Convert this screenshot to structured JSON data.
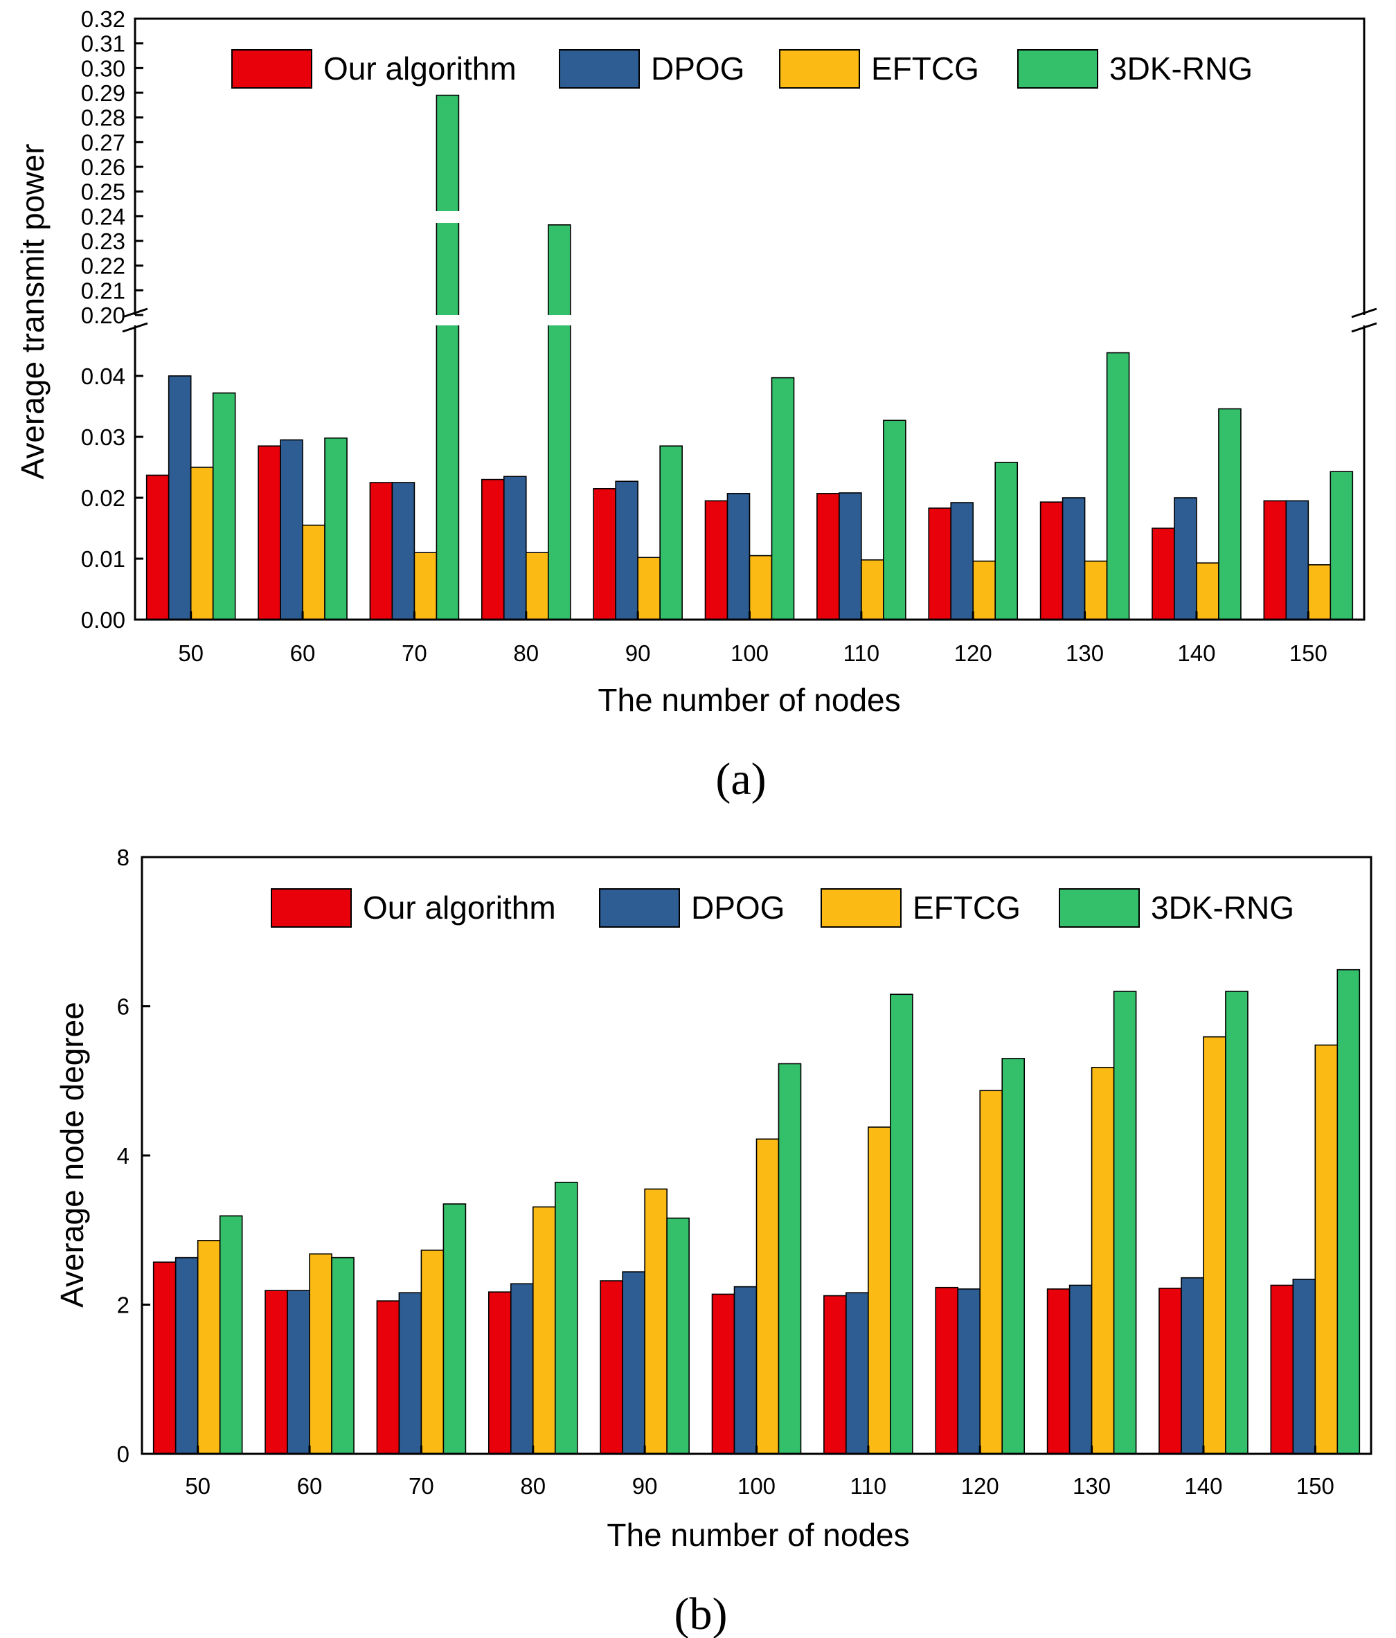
{
  "chart_data": [
    {
      "type": "bar",
      "panel_label": "(a)",
      "xlabel": "The number of nodes",
      "ylabel": "Average transmit power",
      "categories": [
        "50",
        "60",
        "70",
        "80",
        "90",
        "100",
        "110",
        "120",
        "130",
        "140",
        "150"
      ],
      "series": [
        {
          "name": "Our algorithm",
          "color": "#e8000b",
          "values": [
            0.0237,
            0.0285,
            0.0225,
            0.023,
            0.0215,
            0.0195,
            0.0207,
            0.0183,
            0.0193,
            0.015,
            0.0195
          ]
        },
        {
          "name": "DPOG",
          "color": "#2e5d93",
          "values": [
            0.04,
            0.0295,
            0.0225,
            0.0235,
            0.0227,
            0.0207,
            0.0208,
            0.0192,
            0.02,
            0.02,
            0.0195
          ]
        },
        {
          "name": "EFTCG",
          "color": "#fcbb14",
          "values": [
            0.025,
            0.0155,
            0.011,
            0.011,
            0.0102,
            0.0105,
            0.0098,
            0.0096,
            0.0096,
            0.0093,
            0.009
          ]
        },
        {
          "name": "3DK-RNG",
          "color": "#34c06a",
          "values": [
            0.0372,
            0.0298,
            0.289,
            0.2365,
            0.0285,
            0.0397,
            0.0327,
            0.0258,
            0.0438,
            0.0346,
            0.0243
          ]
        }
      ],
      "ylim_lower": [
        0,
        0.05
      ],
      "ylim_upper": [
        0.2,
        0.32
      ],
      "yticks_lower": [
        "0.00",
        "0.01",
        "0.02",
        "0.03",
        "0.04"
      ],
      "yticks_upper": [
        "0.20",
        "0.21",
        "0.22",
        "0.23",
        "0.24",
        "0.25",
        "0.26",
        "0.27",
        "0.28",
        "0.29",
        "0.30",
        "0.31",
        "0.32"
      ],
      "axis_break": true,
      "grid": false,
      "legend_position": "top"
    },
    {
      "type": "bar",
      "panel_label": "(b)",
      "xlabel": "The number of nodes",
      "ylabel": "Average node degree",
      "categories": [
        "50",
        "60",
        "70",
        "80",
        "90",
        "100",
        "110",
        "120",
        "130",
        "140",
        "150"
      ],
      "series": [
        {
          "name": "Our algorithm",
          "color": "#e8000b",
          "values": [
            2.57,
            2.19,
            2.05,
            2.17,
            2.32,
            2.14,
            2.12,
            2.23,
            2.21,
            2.22,
            2.26
          ]
        },
        {
          "name": "DPOG",
          "color": "#2e5d93",
          "values": [
            2.63,
            2.19,
            2.16,
            2.28,
            2.44,
            2.24,
            2.16,
            2.21,
            2.26,
            2.36,
            2.34
          ]
        },
        {
          "name": "EFTCG",
          "color": "#fcbb14",
          "values": [
            2.86,
            2.68,
            2.73,
            3.31,
            3.55,
            4.22,
            4.38,
            4.87,
            5.18,
            5.59,
            5.48
          ]
        },
        {
          "name": "3DK-RNG",
          "color": "#34c06a",
          "values": [
            3.19,
            2.63,
            3.35,
            3.64,
            3.16,
            5.23,
            6.16,
            5.3,
            6.2,
            6.2,
            6.49
          ]
        }
      ],
      "ylim": [
        0,
        8
      ],
      "yticks": [
        "0",
        "2",
        "4",
        "6",
        "8"
      ],
      "grid": false,
      "legend_position": "top"
    }
  ]
}
